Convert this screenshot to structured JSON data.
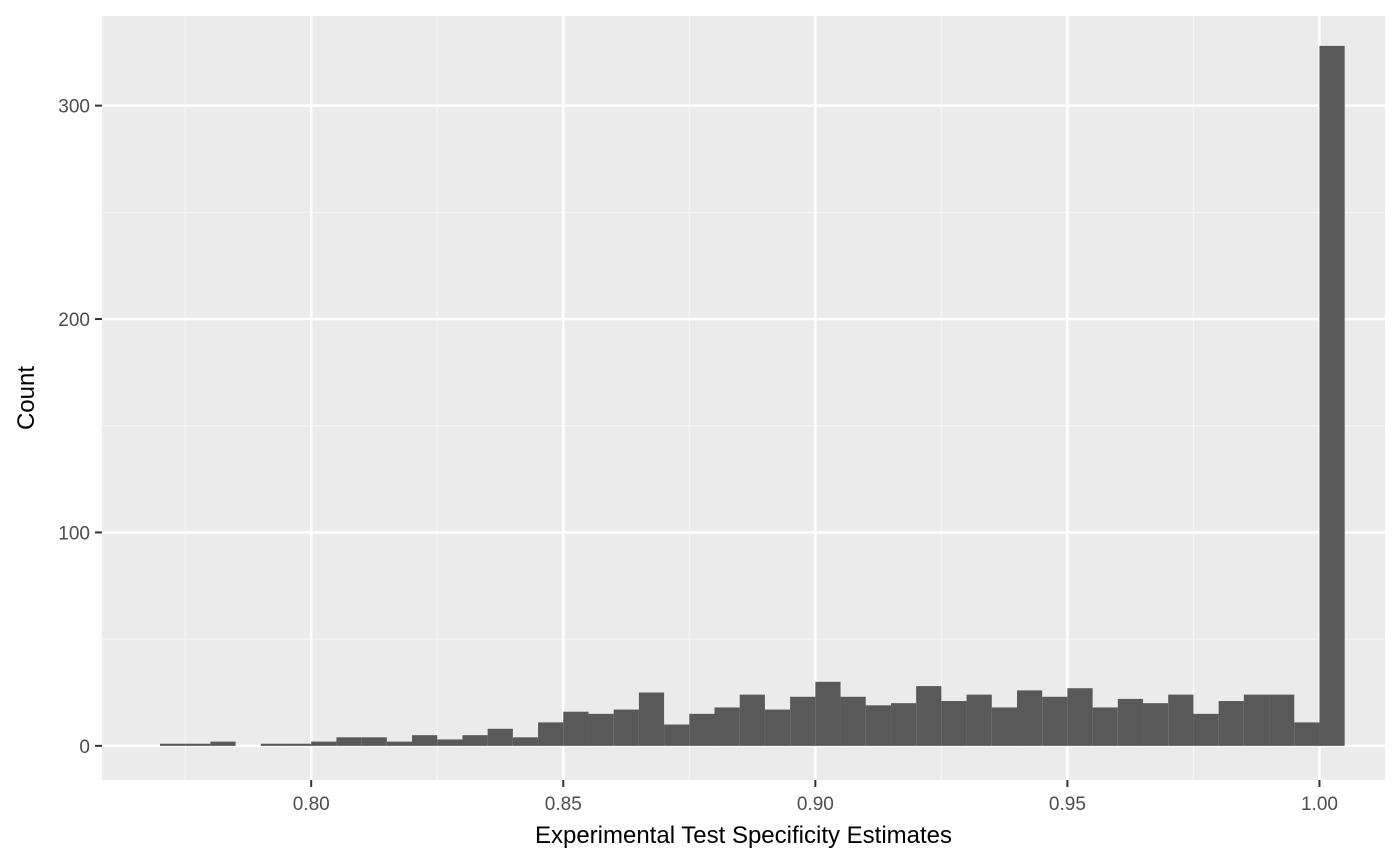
{
  "chart_data": {
    "type": "histogram",
    "title": "",
    "xlabel": "Experimental Test Specificity Estimates",
    "ylabel": "Count",
    "xlim": [
      0.7585,
      1.013
    ],
    "ylim": [
      -16,
      342
    ],
    "x_ticks": [
      0.8,
      0.85,
      0.9,
      0.95,
      1.0
    ],
    "x_tick_labels": [
      "0.80",
      "0.85",
      "0.90",
      "0.95",
      "1.00"
    ],
    "y_ticks": [
      0,
      100,
      200,
      300
    ],
    "y_tick_labels": [
      "0",
      "100",
      "200",
      "300"
    ],
    "x_minor_ticks": [
      0.775,
      0.825,
      0.875,
      0.925,
      0.975
    ],
    "y_minor_ticks": [
      50,
      150,
      250
    ],
    "grid": true,
    "legend": "none",
    "bin_width": 0.005,
    "bin_centers": [
      0.7725,
      0.7775,
      0.7825,
      0.7875,
      0.7925,
      0.7975,
      0.8025,
      0.8075,
      0.8125,
      0.8175,
      0.8225,
      0.8275,
      0.8325,
      0.8375,
      0.8425,
      0.8475,
      0.8525,
      0.8575,
      0.8625,
      0.8675,
      0.8725,
      0.8775,
      0.8825,
      0.8875,
      0.8925,
      0.8975,
      0.9025,
      0.9075,
      0.9125,
      0.9175,
      0.9225,
      0.9275,
      0.9325,
      0.9375,
      0.9425,
      0.9475,
      0.9525,
      0.9575,
      0.9625,
      0.9675,
      0.9725,
      0.9775,
      0.9825,
      0.9875,
      0.9925,
      0.9975,
      1.0025
    ],
    "counts": [
      1,
      1,
      2,
      0,
      1,
      1,
      2,
      4,
      4,
      2,
      5,
      3,
      5,
      8,
      4,
      11,
      16,
      15,
      17,
      25,
      10,
      15,
      18,
      24,
      17,
      23,
      30,
      23,
      19,
      20,
      28,
      21,
      24,
      18,
      26,
      23,
      27,
      18,
      22,
      20,
      24,
      15,
      21,
      24,
      24,
      11,
      328
    ],
    "colors": {
      "panel_background": "#ebebeb",
      "grid_major": "#ffffff",
      "grid_minor": "#f5f5f5",
      "bar_fill": "#595959",
      "tick_mark": "#333333"
    }
  }
}
